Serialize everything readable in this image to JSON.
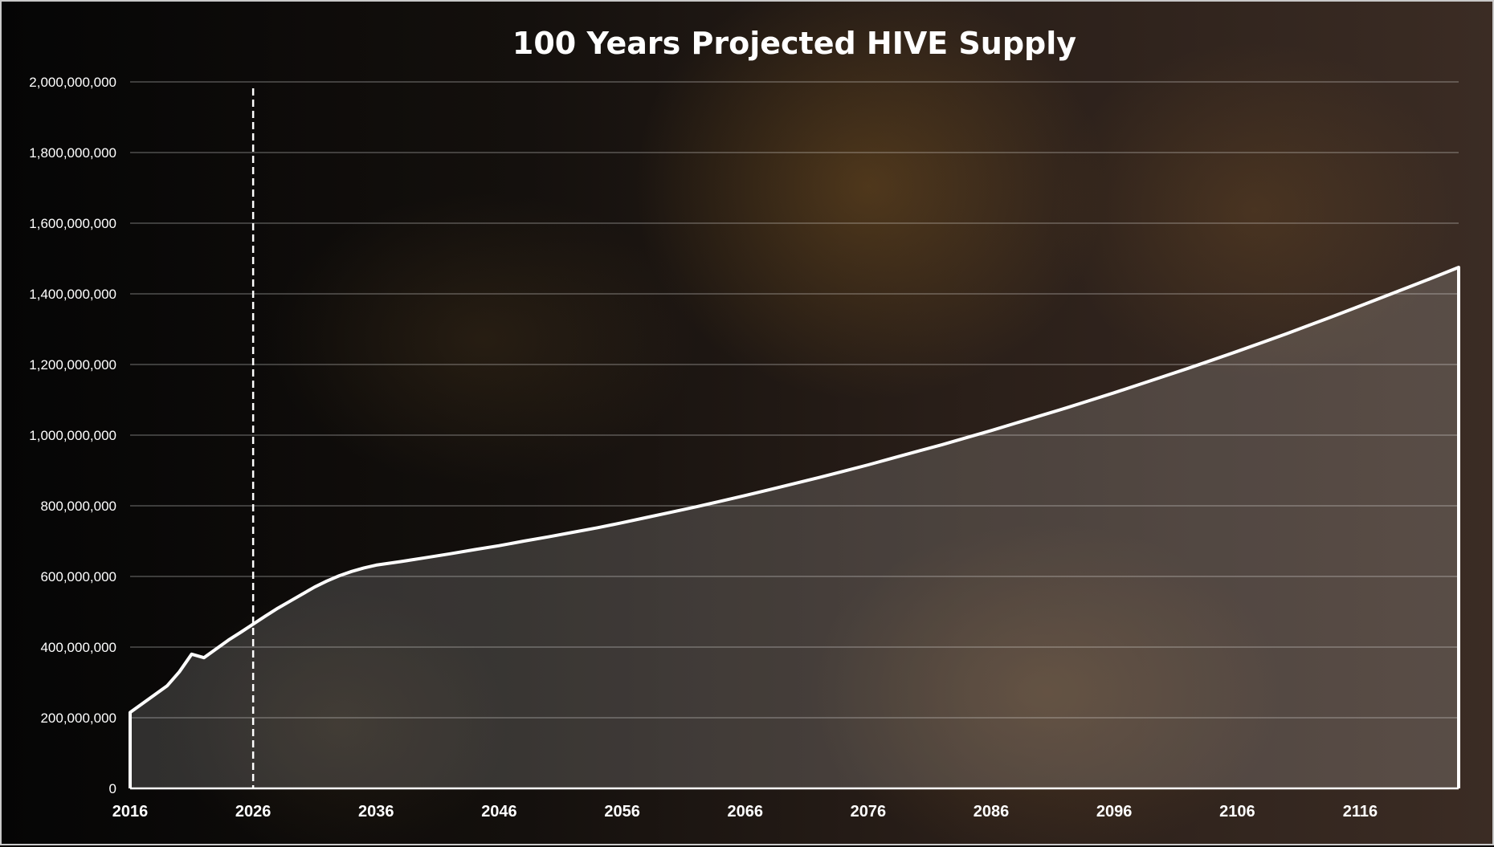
{
  "chart_data": {
    "type": "area",
    "title": "100 Years Projected HIVE Supply",
    "xlabel": "",
    "ylabel": "",
    "xlim": [
      2016,
      2124
    ],
    "ylim": [
      0,
      2000000000
    ],
    "y_ticks": [
      0,
      200000000,
      400000000,
      600000000,
      800000000,
      1000000000,
      1200000000,
      1400000000,
      1600000000,
      1800000000,
      2000000000
    ],
    "y_tick_labels": [
      "0",
      "200,000,000",
      "400,000,000",
      "600,000,000",
      "800,000,000",
      "1,000,000,000",
      "1,200,000,000",
      "1,400,000,000",
      "1,600,000,000",
      "1,800,000,000",
      "2,000,000,000"
    ],
    "x_tick_labels": [
      "2016",
      "2026",
      "2036",
      "2046",
      "2056",
      "2066",
      "2076",
      "2086",
      "2096",
      "2106",
      "2116"
    ],
    "grid": true,
    "legend": "none",
    "reference_line": {
      "x": 2026,
      "style": "dashed"
    },
    "series": [
      {
        "x": [
          2016,
          2017,
          2018,
          2019,
          2020,
          2021,
          2022,
          2023,
          2024,
          2025,
          2026,
          2027,
          2028,
          2029,
          2030,
          2031,
          2032,
          2033,
          2034,
          2035,
          2036,
          2038,
          2040,
          2042,
          2044,
          2046,
          2048,
          2050,
          2052,
          2054,
          2056,
          2058,
          2060,
          2062,
          2064,
          2066,
          2068,
          2070,
          2072,
          2074,
          2076,
          2078,
          2080,
          2082,
          2084,
          2086,
          2088,
          2090,
          2092,
          2094,
          2096,
          2098,
          2100,
          2102,
          2104,
          2106,
          2108,
          2110,
          2112,
          2114,
          2116,
          2118,
          2120,
          2122,
          2124
        ],
        "values": [
          215000000,
          240000000,
          265000000,
          290000000,
          330000000,
          380000000,
          370000000,
          395000000,
          420000000,
          442000000,
          465000000,
          488000000,
          510000000,
          530000000,
          550000000,
          570000000,
          587000000,
          602000000,
          614000000,
          624000000,
          632000000,
          642000000,
          653000000,
          664000000,
          676000000,
          687000000,
          700000000,
          712000000,
          725000000,
          738000000,
          752000000,
          767000000,
          782000000,
          797000000,
          813000000,
          829000000,
          846000000,
          863000000,
          880000000,
          898000000,
          916000000,
          935000000,
          954000000,
          973000000,
          993000000,
          1013000000,
          1034000000,
          1055000000,
          1076000000,
          1098000000,
          1120000000,
          1143000000,
          1166000000,
          1189000000,
          1213000000,
          1237000000,
          1262000000,
          1287000000,
          1313000000,
          1339000000,
          1366000000,
          1393000000,
          1420000000,
          1447000000,
          1475000000
        ]
      }
    ],
    "colors": {
      "line": "#ffffff",
      "fill": "rgba(255,255,255,0.16)",
      "grid": "rgba(255,255,255,0.35)",
      "text": "#ffffff"
    }
  }
}
